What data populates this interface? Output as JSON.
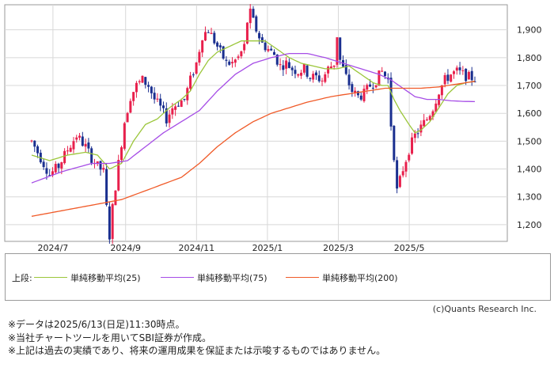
{
  "chart_data": {
    "type": "candlestick",
    "x_tick_labels": [
      "2024/7",
      "2024/9",
      "2024/11",
      "2025/1",
      "2025/3",
      "2025/5"
    ],
    "y_ticks": [
      1200,
      1300,
      1400,
      1500,
      1600,
      1700,
      1800,
      1900
    ],
    "y_tick_labels": [
      "1,200",
      "1,300",
      "1,400",
      "1,500",
      "1,600",
      "1,700",
      "1,800",
      "1,900"
    ],
    "ylim": [
      1140,
      1990
    ],
    "grid": true,
    "colors": {
      "up": "#e8204c",
      "down": "#1a2f8f",
      "ma25": "#9bc63a",
      "ma75": "#a64de6",
      "ma200": "#f05a28"
    },
    "price_path": [
      [
        0,
        1500
      ],
      [
        3,
        1440
      ],
      [
        6,
        1380
      ],
      [
        9,
        1410
      ],
      [
        12,
        1470
      ],
      [
        15,
        1520
      ],
      [
        18,
        1480
      ],
      [
        20,
        1440
      ],
      [
        22,
        1410
      ],
      [
        24,
        1390
      ],
      [
        25,
        1260
      ],
      [
        26,
        1160
      ],
      [
        27,
        1260
      ],
      [
        29,
        1420
      ],
      [
        31,
        1570
      ],
      [
        33,
        1660
      ],
      [
        35,
        1700
      ],
      [
        37,
        1720
      ],
      [
        39,
        1700
      ],
      [
        41,
        1650
      ],
      [
        43,
        1620
      ],
      [
        45,
        1580
      ],
      [
        47,
        1620
      ],
      [
        49,
        1640
      ],
      [
        51,
        1650
      ],
      [
        53,
        1720
      ],
      [
        55,
        1780
      ],
      [
        57,
        1880
      ],
      [
        59,
        1900
      ],
      [
        61,
        1860
      ],
      [
        63,
        1820
      ],
      [
        65,
        1780
      ],
      [
        67,
        1780
      ],
      [
        69,
        1800
      ],
      [
        71,
        1840
      ],
      [
        72,
        1930
      ],
      [
        73,
        1960
      ],
      [
        75,
        1900
      ],
      [
        77,
        1850
      ],
      [
        79,
        1830
      ],
      [
        81,
        1810
      ],
      [
        83,
        1770
      ],
      [
        85,
        1780
      ],
      [
        87,
        1760
      ],
      [
        89,
        1750
      ],
      [
        91,
        1760
      ],
      [
        93,
        1730
      ],
      [
        95,
        1730
      ],
      [
        97,
        1720
      ],
      [
        99,
        1760
      ],
      [
        101,
        1780
      ],
      [
        102,
        1880
      ],
      [
        103,
        1790
      ],
      [
        105,
        1730
      ],
      [
        107,
        1680
      ],
      [
        109,
        1660
      ],
      [
        111,
        1670
      ],
      [
        113,
        1700
      ],
      [
        115,
        1720
      ],
      [
        117,
        1750
      ],
      [
        119,
        1720
      ],
      [
        120,
        1560
      ],
      [
        121,
        1450
      ],
      [
        122,
        1320
      ],
      [
        124,
        1400
      ],
      [
        126,
        1470
      ],
      [
        128,
        1520
      ],
      [
        130,
        1550
      ],
      [
        132,
        1580
      ],
      [
        134,
        1620
      ],
      [
        136,
        1680
      ],
      [
        138,
        1720
      ],
      [
        140,
        1740
      ],
      [
        142,
        1750
      ],
      [
        144,
        1740
      ],
      [
        146,
        1730
      ],
      [
        148,
        1725
      ]
    ],
    "series": [
      {
        "name": "単純移動平均(25)",
        "values": [
          [
            0,
            1450
          ],
          [
            6,
            1430
          ],
          [
            12,
            1450
          ],
          [
            18,
            1460
          ],
          [
            22,
            1450
          ],
          [
            26,
            1400
          ],
          [
            30,
            1420
          ],
          [
            34,
            1500
          ],
          [
            38,
            1560
          ],
          [
            42,
            1580
          ],
          [
            46,
            1620
          ],
          [
            50,
            1650
          ],
          [
            53,
            1680
          ],
          [
            56,
            1740
          ],
          [
            59,
            1790
          ],
          [
            62,
            1820
          ],
          [
            66,
            1840
          ],
          [
            70,
            1860
          ],
          [
            74,
            1860
          ],
          [
            78,
            1860
          ],
          [
            82,
            1830
          ],
          [
            86,
            1800
          ],
          [
            90,
            1780
          ],
          [
            94,
            1770
          ],
          [
            98,
            1760
          ],
          [
            102,
            1760
          ],
          [
            106,
            1770
          ],
          [
            110,
            1740
          ],
          [
            114,
            1710
          ],
          [
            117,
            1700
          ],
          [
            119,
            1700
          ],
          [
            121,
            1650
          ],
          [
            123,
            1610
          ],
          [
            126,
            1560
          ],
          [
            128,
            1530
          ],
          [
            130,
            1540
          ],
          [
            133,
            1570
          ],
          [
            136,
            1620
          ],
          [
            139,
            1670
          ],
          [
            142,
            1700
          ],
          [
            145,
            1710
          ],
          [
            148,
            1715
          ]
        ]
      },
      {
        "name": "単純移動平均(75)",
        "values": [
          [
            0,
            1350
          ],
          [
            10,
            1390
          ],
          [
            20,
            1420
          ],
          [
            26,
            1420
          ],
          [
            32,
            1430
          ],
          [
            38,
            1480
          ],
          [
            44,
            1530
          ],
          [
            50,
            1570
          ],
          [
            56,
            1610
          ],
          [
            62,
            1680
          ],
          [
            68,
            1740
          ],
          [
            74,
            1780
          ],
          [
            80,
            1800
          ],
          [
            86,
            1815
          ],
          [
            92,
            1815
          ],
          [
            98,
            1800
          ],
          [
            104,
            1780
          ],
          [
            110,
            1760
          ],
          [
            116,
            1740
          ],
          [
            120,
            1720
          ],
          [
            124,
            1690
          ],
          [
            128,
            1660
          ],
          [
            132,
            1650
          ],
          [
            136,
            1650
          ],
          [
            140,
            1645
          ],
          [
            144,
            1643
          ],
          [
            148,
            1642
          ]
        ]
      },
      {
        "name": "単純移動平均(200)",
        "values": [
          [
            0,
            1230
          ],
          [
            10,
            1250
          ],
          [
            20,
            1270
          ],
          [
            30,
            1290
          ],
          [
            40,
            1330
          ],
          [
            50,
            1370
          ],
          [
            56,
            1420
          ],
          [
            62,
            1480
          ],
          [
            68,
            1530
          ],
          [
            74,
            1570
          ],
          [
            80,
            1600
          ],
          [
            86,
            1620
          ],
          [
            92,
            1640
          ],
          [
            100,
            1660
          ],
          [
            106,
            1670
          ],
          [
            112,
            1680
          ],
          [
            118,
            1690
          ],
          [
            124,
            1690
          ],
          [
            130,
            1690
          ],
          [
            136,
            1695
          ],
          [
            142,
            1705
          ],
          [
            148,
            1715
          ]
        ]
      }
    ]
  },
  "legend": {
    "prefix": "上段:",
    "items": [
      "単純移動平均(25)",
      "単純移動平均(75)",
      "単純移動平均(200)"
    ]
  },
  "credit": "(c)Quants Research Inc.",
  "notes": [
    "※データは2025/6/13(日足)11:30時点。",
    "※当社チャートツールを用いてSBI証券が作成。",
    "※上記は過去の実績であり、将来の運用成果を保証または示唆するものではありません。"
  ]
}
